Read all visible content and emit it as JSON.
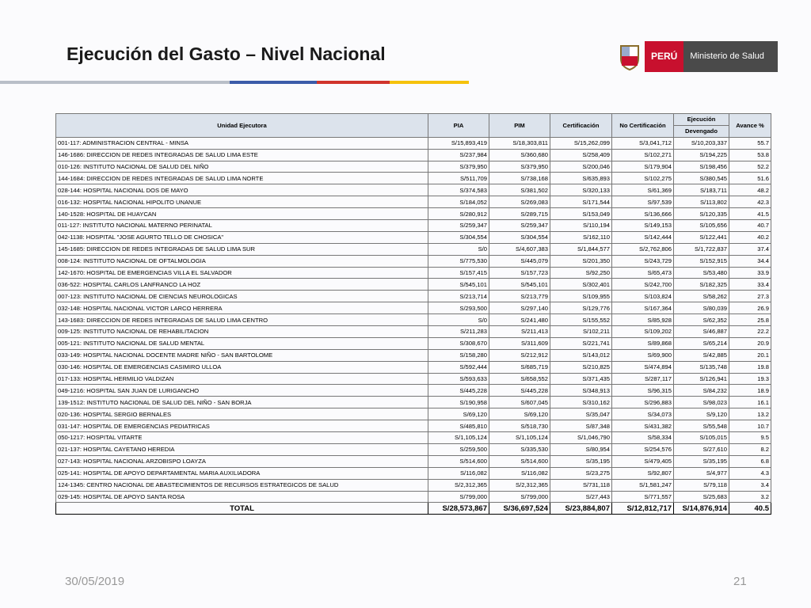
{
  "header": {
    "title": "Ejecución del Gasto – Nivel Nacional",
    "logo": [
      "PERÚ",
      "Ministerio de Salud"
    ]
  },
  "table": {
    "columns": [
      "Unidad Ejecutora",
      "PIA",
      "PIM",
      "Certificación",
      "No Certificación",
      "Ejecución",
      "Avance %"
    ],
    "subheader": "Devengado",
    "rows": [
      [
        "001-117: ADMINISTRACION CENTRAL - MINSA",
        "S/15,893,419",
        "S/18,303,811",
        "S/15,262,099",
        "S/3,041,712",
        "S/10,203,337",
        "55.7"
      ],
      [
        "146-1686: DIRECCION DE REDES INTEGRADAS DE SALUD LIMA ESTE",
        "S/237,984",
        "S/360,680",
        "S/258,409",
        "S/102,271",
        "S/194,225",
        "53.8"
      ],
      [
        "010-126: INSTITUTO NACIONAL DE SALUD DEL NIÑO",
        "S/379,950",
        "S/379,950",
        "S/200,046",
        "S/179,904",
        "S/198,456",
        "52.2"
      ],
      [
        "144-1684: DIRECCION DE REDES INTEGRADAS DE SALUD LIMA NORTE",
        "S/511,709",
        "S/738,168",
        "S/635,893",
        "S/102,275",
        "S/380,545",
        "51.6"
      ],
      [
        "028-144: HOSPITAL NACIONAL DOS DE MAYO",
        "S/374,583",
        "S/381,502",
        "S/320,133",
        "S/61,369",
        "S/183,711",
        "48.2"
      ],
      [
        "016-132: HOSPITAL NACIONAL HIPOLITO UNANUE",
        "S/184,052",
        "S/269,083",
        "S/171,544",
        "S/97,539",
        "S/113,802",
        "42.3"
      ],
      [
        "140-1528: HOSPITAL DE HUAYCAN",
        "S/280,912",
        "S/289,715",
        "S/153,049",
        "S/136,666",
        "S/120,335",
        "41.5"
      ],
      [
        "011-127: INSTITUTO NACIONAL MATERNO PERINATAL",
        "S/259,347",
        "S/259,347",
        "S/110,194",
        "S/149,153",
        "S/105,656",
        "40.7"
      ],
      [
        "042-1138: HOSPITAL \"JOSE AGURTO TELLO DE CHOSICA\"",
        "S/304,554",
        "S/304,554",
        "S/162,110",
        "S/142,444",
        "S/122,441",
        "40.2"
      ],
      [
        "145-1685: DIRECCION DE REDES INTEGRADAS DE SALUD LIMA SUR",
        "S/0",
        "S/4,607,383",
        "S/1,844,577",
        "S/2,762,806",
        "S/1,722,837",
        "37.4"
      ],
      [
        "008-124: INSTITUTO NACIONAL DE OFTALMOLOGIA",
        "S/775,530",
        "S/445,079",
        "S/201,350",
        "S/243,729",
        "S/152,915",
        "34.4"
      ],
      [
        "142-1670: HOSPITAL DE EMERGENCIAS VILLA EL SALVADOR",
        "S/157,415",
        "S/157,723",
        "S/92,250",
        "S/65,473",
        "S/53,480",
        "33.9"
      ],
      [
        "036-522: HOSPITAL CARLOS LANFRANCO LA HOZ",
        "S/545,101",
        "S/545,101",
        "S/302,401",
        "S/242,700",
        "S/182,325",
        "33.4"
      ],
      [
        "007-123: INSTITUTO NACIONAL DE CIENCIAS NEUROLOGICAS",
        "S/213,714",
        "S/213,779",
        "S/109,955",
        "S/103,824",
        "S/58,262",
        "27.3"
      ],
      [
        "032-148: HOSPITAL NACIONAL VICTOR LARCO HERRERA",
        "S/293,500",
        "S/297,140",
        "S/129,776",
        "S/167,364",
        "S/80,039",
        "26.9"
      ],
      [
        "143-1683: DIRECCION DE REDES INTEGRADAS DE SALUD LIMA CENTRO",
        "S/0",
        "S/241,480",
        "S/155,552",
        "S/85,928",
        "S/62,352",
        "25.8"
      ],
      [
        "009-125: INSTITUTO NACIONAL DE REHABILITACION",
        "S/211,283",
        "S/211,413",
        "S/102,211",
        "S/109,202",
        "S/46,887",
        "22.2"
      ],
      [
        "005-121: INSTITUTO NACIONAL DE SALUD MENTAL",
        "S/308,670",
        "S/311,609",
        "S/221,741",
        "S/89,868",
        "S/65,214",
        "20.9"
      ],
      [
        "033-149: HOSPITAL NACIONAL DOCENTE MADRE NIÑO - SAN BARTOLOME",
        "S/158,280",
        "S/212,912",
        "S/143,012",
        "S/69,900",
        "S/42,885",
        "20.1"
      ],
      [
        "030-146: HOSPITAL DE EMERGENCIAS CASIMIRO ULLOA",
        "S/592,444",
        "S/685,719",
        "S/210,825",
        "S/474,894",
        "S/135,748",
        "19.8"
      ],
      [
        "017-133: HOSPITAL HERMILIO VALDIZAN",
        "S/593,633",
        "S/658,552",
        "S/371,435",
        "S/287,117",
        "S/126,941",
        "19.3"
      ],
      [
        "049-1216: HOSPITAL SAN JUAN DE LURIGANCHO",
        "S/445,228",
        "S/445,228",
        "S/348,913",
        "S/96,315",
        "S/84,232",
        "18.9"
      ],
      [
        "139-1512: INSTITUTO NACIONAL DE SALUD DEL NIÑO - SAN BORJA",
        "S/190,958",
        "S/607,045",
        "S/310,162",
        "S/296,883",
        "S/98,023",
        "16.1"
      ],
      [
        "020-136: HOSPITAL SERGIO BERNALES",
        "S/69,120",
        "S/69,120",
        "S/35,047",
        "S/34,073",
        "S/9,120",
        "13.2"
      ],
      [
        "031-147: HOSPITAL DE EMERGENCIAS PEDIATRICAS",
        "S/485,810",
        "S/518,730",
        "S/87,348",
        "S/431,382",
        "S/55,548",
        "10.7"
      ],
      [
        "050-1217: HOSPITAL VITARTE",
        "S/1,105,124",
        "S/1,105,124",
        "S/1,046,790",
        "S/58,334",
        "S/105,015",
        "9.5"
      ],
      [
        "021-137: HOSPITAL CAYETANO HEREDIA",
        "S/259,500",
        "S/335,530",
        "S/80,954",
        "S/254,576",
        "S/27,610",
        "8.2"
      ],
      [
        "027-143: HOSPITAL NACIONAL ARZOBISPO LOAYZA",
        "S/514,600",
        "S/514,600",
        "S/35,195",
        "S/479,405",
        "S/35,195",
        "6.8"
      ],
      [
        "025-141: HOSPITAL DE APOYO DEPARTAMENTAL MARIA AUXILIADORA",
        "S/116,082",
        "S/116,082",
        "S/23,275",
        "S/92,807",
        "S/4,977",
        "4.3"
      ],
      [
        "124-1345: CENTRO NACIONAL DE ABASTECIMIENTOS DE RECURSOS ESTRATEGICOS DE SALUD",
        "S/2,312,365",
        "S/2,312,365",
        "S/731,118",
        "S/1,581,247",
        "S/79,118",
        "3.4"
      ],
      [
        "029-145: HOSPITAL DE APOYO SANTA ROSA",
        "S/799,000",
        "S/799,000",
        "S/27,443",
        "S/771,557",
        "S/25,683",
        "3.2"
      ]
    ],
    "total": [
      "TOTAL",
      "S/28,573,867",
      "S/36,697,524",
      "S/23,884,807",
      "S/12,812,717",
      "S/14,876,914",
      "40.5"
    ]
  },
  "footer": {
    "date": "30/05/2019",
    "page": "21"
  }
}
